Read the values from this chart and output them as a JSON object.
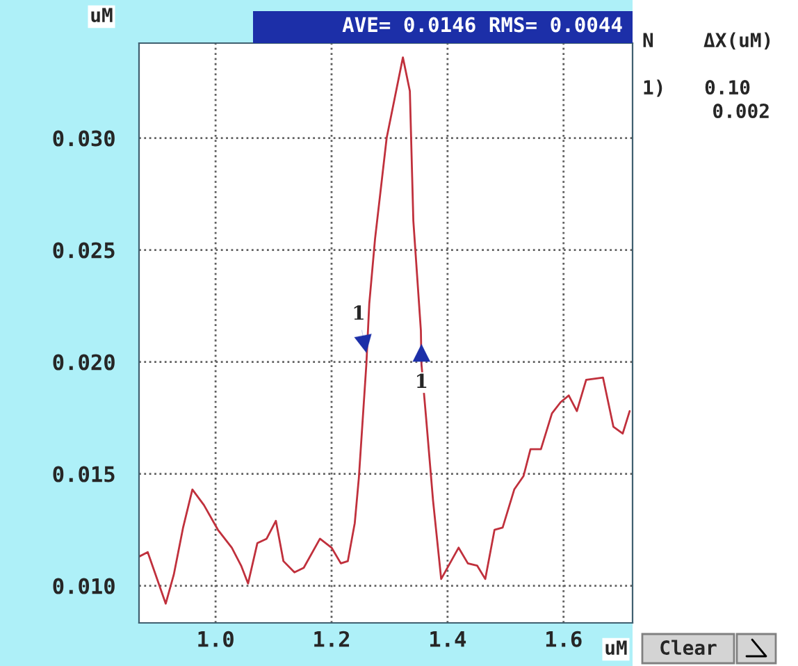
{
  "chart_data": {
    "type": "line",
    "subtitle": "AVE= 0.0146 RMS= 0.0044",
    "xlabel": "uM",
    "ylabel": "uM",
    "xlim": [
      0.868,
      1.719
    ],
    "ylim": [
      0.00834,
      0.03424
    ],
    "xticks": [
      {
        "value": 1.0,
        "label": "1.0"
      },
      {
        "value": 1.2,
        "label": "1.2"
      },
      {
        "value": 1.4,
        "label": "1.4"
      },
      {
        "value": 1.6,
        "label": "1.6"
      }
    ],
    "yticks": [
      {
        "value": 0.01,
        "label": "0.010"
      },
      {
        "value": 0.015,
        "label": "0.015"
      },
      {
        "value": 0.02,
        "label": "0.020"
      },
      {
        "value": 0.025,
        "label": "0.025"
      },
      {
        "value": 0.03,
        "label": "0.030"
      }
    ],
    "grid": true,
    "legend": false,
    "marker": "none",
    "line_style": "solid",
    "series": [
      {
        "color": "#c0303c",
        "x": [
          0.868,
          0.883,
          0.914,
          0.928,
          0.944,
          0.96,
          0.98,
          1.004,
          1.028,
          1.044,
          1.056,
          1.072,
          1.088,
          1.104,
          1.117,
          1.136,
          1.152,
          1.18,
          1.2,
          1.216,
          1.228,
          1.24,
          1.247,
          1.26,
          1.265,
          1.275,
          1.295,
          1.323,
          1.335,
          1.341,
          1.354,
          1.355,
          1.363,
          1.375,
          1.389,
          1.419,
          1.435,
          1.451,
          1.465,
          1.481,
          1.495,
          1.515,
          1.531,
          1.543,
          1.561,
          1.58,
          1.595,
          1.609,
          1.623,
          1.639,
          1.668,
          1.686,
          1.702,
          1.714
        ],
        "values": [
          0.0113,
          0.0115,
          0.0092,
          0.0105,
          0.0126,
          0.0143,
          0.0136,
          0.0125,
          0.0117,
          0.0109,
          0.0101,
          0.0119,
          0.0121,
          0.0129,
          0.0111,
          0.0106,
          0.0108,
          0.0121,
          0.0117,
          0.011,
          0.0111,
          0.0128,
          0.0148,
          0.0199,
          0.0226,
          0.0255,
          0.03,
          0.0336,
          0.0321,
          0.0263,
          0.0214,
          0.0199,
          0.0175,
          0.0138,
          0.0103,
          0.0117,
          0.011,
          0.0109,
          0.0103,
          0.0125,
          0.0126,
          0.0143,
          0.0149,
          0.0161,
          0.0161,
          0.0177,
          0.0182,
          0.0185,
          0.0178,
          0.0192,
          0.0193,
          0.0171,
          0.0168,
          0.0178
        ]
      }
    ],
    "annotations": [
      {
        "text": "1",
        "x": 1.26,
        "y": 0.0204
      },
      {
        "text": "1",
        "x": 1.355,
        "y": 0.0208
      },
      "N",
      "ΔX(uM)",
      "1)",
      "0.10",
      "0.002",
      "Clear"
    ]
  }
}
